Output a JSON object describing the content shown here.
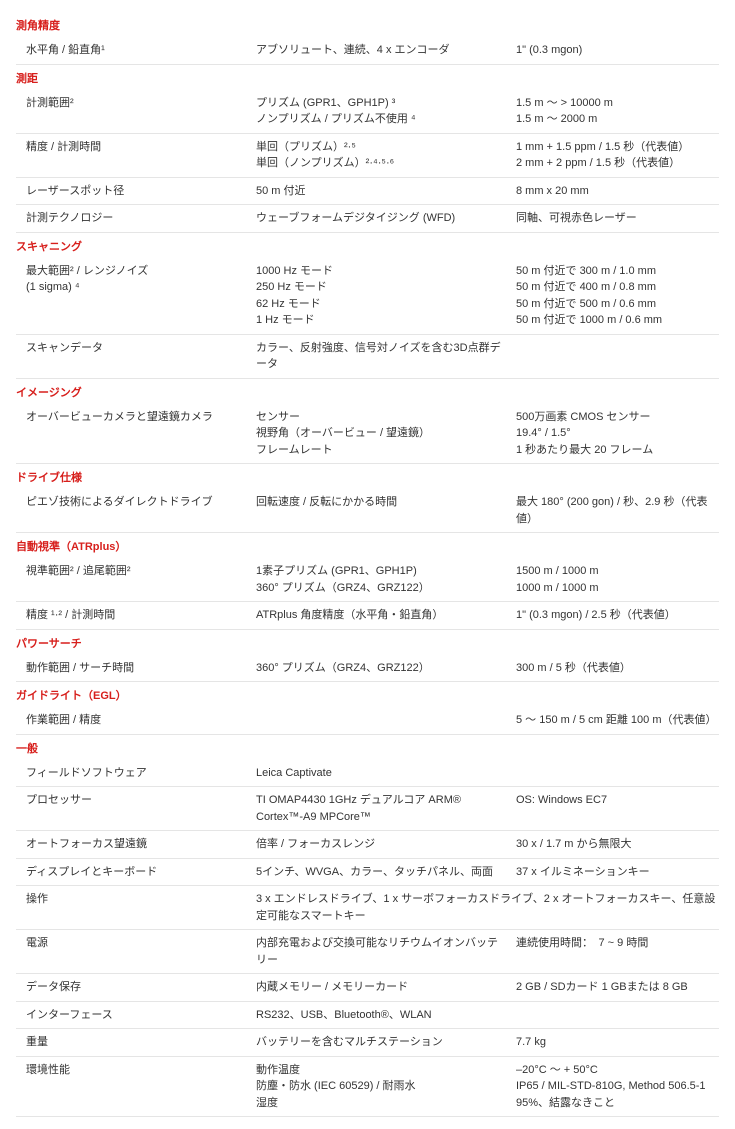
{
  "sections": {
    "angle": {
      "header": "測角精度",
      "r0": {
        "c1": "水平角 / 鉛直角¹",
        "c2": "アブソリュート、連続、4 x エンコーダ",
        "c3": "1\" (0.3 mgon)"
      }
    },
    "dist": {
      "header": "測距",
      "r0": {
        "c1": "計測範囲²",
        "c2": "プリズム (GPR1、GPH1P) ³\nノンプリズム / プリズム不使用 ⁴",
        "c3": "1.5 m ～ > 10000 m\n1.5 m ～ 2000 m"
      },
      "r1": {
        "c1": "精度 / 計測時間",
        "c2": "単回（プリズム）²·⁵\n単回（ノンプリズム）²·⁴·⁵·⁶",
        "c3": "1 mm + 1.5 ppm / 1.5 秒（代表値）\n2 mm + 2 ppm / 1.5 秒（代表値）"
      },
      "r2": {
        "c1": "レーザースポット径",
        "c2": "50 m 付近",
        "c3": "8 mm  x  20 mm"
      },
      "r3": {
        "c1": "計測テクノロジー",
        "c2": "ウェーブフォームデジタイジング (WFD)",
        "c3": "同軸、可視赤色レーザー"
      }
    },
    "scan": {
      "header": "スキャニング",
      "r0": {
        "c1": "最大範囲² / レンジノイズ\n(1 sigma) ⁴",
        "c2": "1000 Hz モード\n250 Hz モード\n62 Hz モード\n1 Hz モード",
        "c3": "50 m 付近で 300 m / 1.0 mm\n50 m 付近で 400 m / 0.8 mm\n50 m 付近で 500 m / 0.6 mm\n50 m 付近で 1000 m / 0.6 mm"
      },
      "r1": {
        "c1": "スキャンデータ",
        "c2": "カラー、反射強度、信号対ノイズを含む3D点群データ",
        "c3": ""
      }
    },
    "image": {
      "header": "イメージング",
      "r0": {
        "c1": "オーバービューカメラと望遠鏡カメラ",
        "c2": "センサー\n視野角（オーバービュー / 望遠鏡）\nフレームレート",
        "c3": "500万画素 CMOS センサー\n19.4° / 1.5°\n1 秒あたり最大 20 フレーム"
      }
    },
    "drive": {
      "header": "ドライブ仕様",
      "r0": {
        "c1": "ピエゾ技術によるダイレクトドライブ",
        "c2": "回転速度 / 反転にかかる時間",
        "c3": "最大 180° (200 gon) / 秒、2.9 秒（代表値）"
      }
    },
    "atr": {
      "header": "自動視準（ATRplus）",
      "r0": {
        "c1": "視準範囲² / 追尾範囲²",
        "c2": "1素子プリズム (GPR1、GPH1P)\n360° プリズム（GRZ4、GRZ122）",
        "c3": "1500 m / 1000 m\n1000 m / 1000 m"
      },
      "r1": {
        "c1": "精度 ¹·² / 計測時間",
        "c2": "ATRplus 角度精度（水平角・鉛直角）",
        "c3": "1\" (0.3 mgon) / 2.5 秒（代表値）"
      }
    },
    "power": {
      "header": "パワーサーチ",
      "r0": {
        "c1": "動作範囲 / サーチ時間",
        "c2": "360° プリズム（GRZ4、GRZ122）",
        "c3": "300 m / 5 秒（代表値）"
      }
    },
    "guide": {
      "header": "ガイドライト（EGL）",
      "r0": {
        "c1": "作業範囲 / 精度",
        "c2": "",
        "c3": "5 ～ 150 m / 5 cm 距離 100 m（代表値）"
      }
    },
    "gen": {
      "header": "一般",
      "r0": {
        "c1": "フィールドソフトウェア",
        "c2": "Leica Captivate",
        "c3": ""
      },
      "r1": {
        "c1": "プロセッサー",
        "c2": "TI OMAP4430 1GHz デュアルコア ARM® Cortex™-A9 MPCore™",
        "c3": "OS: Windows EC7"
      },
      "r2": {
        "c1": "オートフォーカス望遠鏡",
        "c2": "倍率 / フォーカスレンジ",
        "c3": "30 x / 1.7 m から無限大"
      },
      "r3": {
        "c1": "ディスプレイとキーボード",
        "c2": "5インチ、WVGA、カラー、タッチパネル、両面",
        "c3": "37 x イルミネーションキー"
      },
      "r4": {
        "c1": "操作",
        "c2": "3 x エンドレスドライブ、1 x サーボフォーカスドライブ、2 x オートフォーカスキー、任意設定可能なスマートキー",
        "c3": ""
      },
      "r5": {
        "c1": "電源",
        "c2": "内部充電および交換可能なリチウムイオンバッテリー",
        "c3": "連続使用時間：　7 ~ 9 時間"
      },
      "r6": {
        "c1": "データ保存",
        "c2": "内蔵メモリー / メモリーカード",
        "c3": "2 GB / SDカード 1 GBまたは 8 GB"
      },
      "r7": {
        "c1": "インターフェース",
        "c2": "RS232、USB、Bluetooth®、WLAN",
        "c3": ""
      },
      "r8": {
        "c1": "重量",
        "c2": "バッテリーを含むマルチステーション",
        "c3": "7.7 kg"
      },
      "r9": {
        "c1": "環境性能",
        "c2": "動作温度\n防塵・防水 (IEC 60529) / 耐雨水\n湿度",
        "c3": "–20°C ～ + 50°C\nIP65 / MIL-STD-810G, Method 506.5-1\n95%、結露なきこと"
      }
    }
  }
}
